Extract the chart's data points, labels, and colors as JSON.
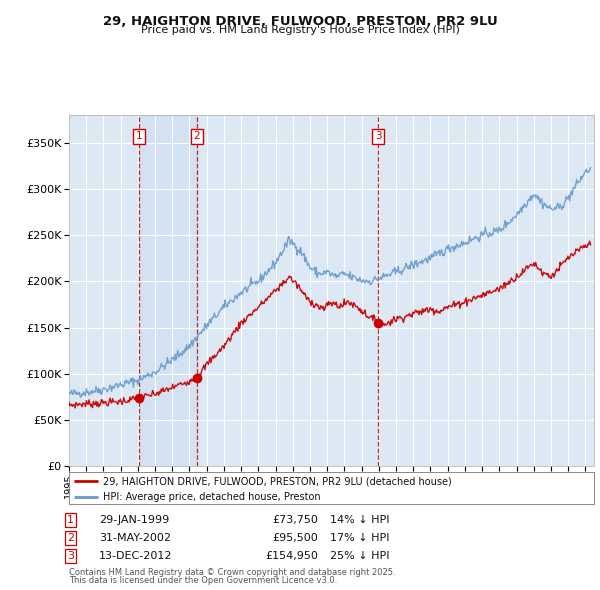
{
  "title1": "29, HAIGHTON DRIVE, FULWOOD, PRESTON, PR2 9LU",
  "title2": "Price paid vs. HM Land Registry's House Price Index (HPI)",
  "legend_red": "29, HAIGHTON DRIVE, FULWOOD, PRESTON, PR2 9LU (detached house)",
  "legend_blue": "HPI: Average price, detached house, Preston",
  "footer1": "Contains HM Land Registry data © Crown copyright and database right 2025.",
  "footer2": "This data is licensed under the Open Government Licence v3.0.",
  "transactions": [
    {
      "num": 1,
      "date": "29-JAN-1999",
      "price": "£73,750",
      "hpi": "14% ↓ HPI",
      "x_year": 1999.08
    },
    {
      "num": 2,
      "date": "31-MAY-2002",
      "price": "£95,500",
      "hpi": "17% ↓ HPI",
      "x_year": 2002.42
    },
    {
      "num": 3,
      "date": "13-DEC-2012",
      "price": "£154,950",
      "hpi": "25% ↓ HPI",
      "x_year": 2012.95
    }
  ],
  "red_color": "#cc0000",
  "blue_color": "#6699cc",
  "bg_color": "#ffffff",
  "chart_bg": "#dce9f5",
  "shaded_bg": "#dce9f5",
  "grid_color": "#ffffff",
  "ylim": [
    0,
    380000
  ],
  "yticks": [
    0,
    50000,
    100000,
    150000,
    200000,
    250000,
    300000,
    350000
  ],
  "xlim_start": 1995.0,
  "xlim_end": 2025.5
}
